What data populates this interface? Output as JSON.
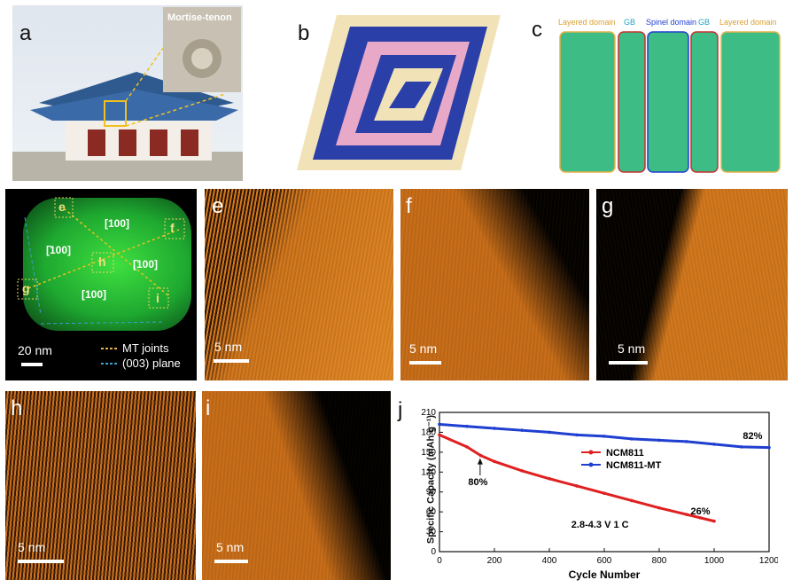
{
  "panels": {
    "a": {
      "label": "a",
      "inset_caption": "Mortise-tenon"
    },
    "b": {
      "label": "b"
    },
    "c": {
      "label": "c",
      "domains": [
        "Layered domain",
        "GB",
        "Spinel domain",
        "GB",
        "Layered domain"
      ]
    },
    "d": {
      "labels": [
        "e",
        "f",
        "g",
        "h",
        "i"
      ],
      "directions": [
        "[100]",
        "[̄100]",
        "[̄100]",
        "[100]"
      ],
      "scale": "20 nm",
      "legend": [
        "MT joints",
        "(003) plane"
      ]
    },
    "e": {
      "label": "e",
      "scale": "5 nm"
    },
    "f": {
      "label": "f",
      "scale": "5 nm"
    },
    "g": {
      "label": "g",
      "scale": "5 nm"
    },
    "h": {
      "label": "h",
      "scale": "5 nm"
    },
    "i": {
      "label": "i",
      "scale": "5 nm"
    },
    "j": {
      "label": "j"
    }
  },
  "colors": {
    "ncm811": "#e02020",
    "ncm811mt": "#1f3fd0",
    "stem_orange": "#d2781e",
    "tem_green": "#20c030"
  },
  "chart_data": {
    "type": "line",
    "title": "",
    "xlabel": "Cycle Number",
    "ylabel": "Specific Capacity (mAh g⁻¹)",
    "xlim": [
      0,
      1200
    ],
    "ylim": [
      0,
      210
    ],
    "xticks": [
      0,
      200,
      400,
      600,
      800,
      1000,
      1200
    ],
    "yticks": [
      0,
      30,
      60,
      90,
      120,
      150,
      180,
      210
    ],
    "series": [
      {
        "name": "NCM811",
        "x": [
          0,
          100,
          150,
          200,
          300,
          400,
          500,
          600,
          700,
          800,
          900,
          950,
          1000
        ],
        "y": [
          176,
          158,
          145,
          136,
          122,
          110,
          99,
          88,
          77,
          66,
          56,
          51,
          46
        ]
      },
      {
        "name": "NCM811-MT",
        "x": [
          0,
          100,
          200,
          300,
          400,
          500,
          600,
          700,
          800,
          900,
          1000,
          1100,
          1200
        ],
        "y": [
          192,
          189,
          186,
          183,
          180,
          176,
          174,
          170,
          168,
          166,
          162,
          158,
          157
        ]
      }
    ],
    "annotations": [
      "80%",
      "26%",
      "82%",
      "2.8-4.3 V 1 C"
    ],
    "legend_position": "center-right"
  }
}
